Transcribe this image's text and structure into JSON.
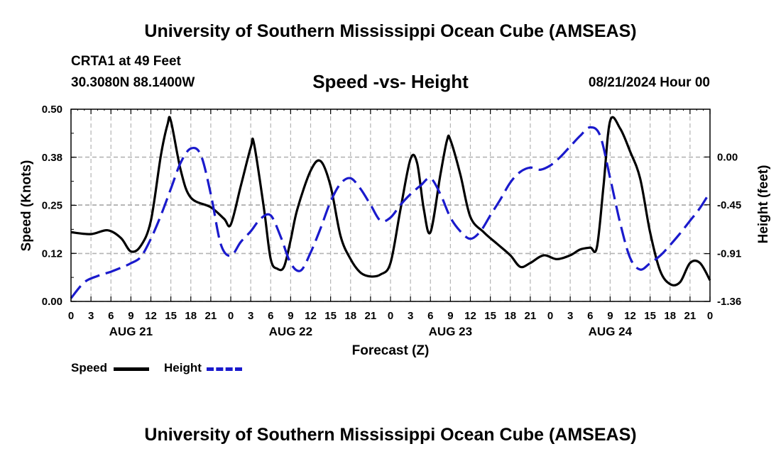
{
  "header": {
    "main_title": "University of Southern Mississippi Ocean Cube (AMSEAS)",
    "station_name": "CRTA1 at 49 Feet",
    "station_coords": "30.3080N  88.1400W",
    "chart_title": "Speed -vs- Height",
    "forecast_time": "08/21/2024 Hour 00"
  },
  "footer": {
    "title": "University of Southern Mississippi Ocean Cube (AMSEAS)"
  },
  "legend": {
    "speed_label": "Speed",
    "height_label": "Height"
  },
  "colors": {
    "speed": "#000000",
    "height": "#1a1acc",
    "grid": "#b4b4b4"
  },
  "chart_data": {
    "type": "line",
    "title": "Speed -vs- Height",
    "xlabel": "Forecast (Z)",
    "ylabel": "Speed (Knots)",
    "y2label": "Height (feet)",
    "x_hours_range": [
      0,
      96
    ],
    "x_tick_labels": [
      "0",
      "3",
      "6",
      "9",
      "12",
      "15",
      "18",
      "21",
      "0",
      "3",
      "6",
      "9",
      "12",
      "15",
      "18",
      "21",
      "0",
      "3",
      "6",
      "9",
      "12",
      "15",
      "18",
      "21",
      "0",
      "3",
      "6",
      "9",
      "12",
      "15",
      "18",
      "21",
      "0"
    ],
    "day_labels": [
      {
        "label": "AUG 21",
        "hour": 9
      },
      {
        "label": "AUG 22",
        "hour": 33
      },
      {
        "label": "AUG 23",
        "hour": 57
      },
      {
        "label": "AUG 24",
        "hour": 81
      }
    ],
    "y_left": {
      "range": [
        0,
        0.5
      ],
      "ticks": [
        0.0,
        0.125,
        0.25,
        0.375,
        0.5
      ],
      "tick_labels": [
        "0.00",
        "0.12",
        "0.25",
        "0.38",
        "0.50"
      ]
    },
    "y_right": {
      "range": [
        -1.36,
        0.45
      ],
      "ticks": [
        -1.36,
        -0.91,
        -0.45,
        0.0
      ],
      "tick_labels": [
        "-1.36",
        "-0.91",
        "-0.45",
        "0.00"
      ]
    },
    "series": [
      {
        "name": "Speed",
        "axis": "left",
        "style": "solid",
        "x": [
          0,
          3,
          5.5,
          7.5,
          9,
          10.5,
          12,
          13.5,
          14.5,
          15,
          16.5,
          18,
          21,
          23,
          24,
          25.5,
          27,
          27.5,
          29,
          30,
          31,
          32,
          33,
          34,
          36,
          37.5,
          39,
          40.5,
          42,
          43.5,
          45,
          46.5,
          48,
          49.5,
          51,
          52,
          53,
          54,
          55.5,
          56.5,
          57,
          58.5,
          60,
          62,
          64,
          66,
          67.5,
          69,
          71,
          73,
          75,
          76.5,
          78,
          79,
          80,
          81,
          82.5,
          84,
          85.5,
          87,
          88.5,
          90,
          91.5,
          93,
          94.5,
          96
        ],
        "values": [
          0.18,
          0.175,
          0.185,
          0.165,
          0.13,
          0.145,
          0.21,
          0.38,
          0.46,
          0.47,
          0.34,
          0.27,
          0.245,
          0.215,
          0.2,
          0.3,
          0.4,
          0.41,
          0.24,
          0.11,
          0.085,
          0.09,
          0.16,
          0.24,
          0.34,
          0.365,
          0.3,
          0.17,
          0.11,
          0.075,
          0.065,
          0.07,
          0.1,
          0.24,
          0.37,
          0.36,
          0.24,
          0.18,
          0.33,
          0.42,
          0.42,
          0.33,
          0.22,
          0.18,
          0.15,
          0.12,
          0.09,
          0.1,
          0.12,
          0.11,
          0.12,
          0.135,
          0.14,
          0.14,
          0.3,
          0.47,
          0.45,
          0.39,
          0.32,
          0.18,
          0.08,
          0.045,
          0.05,
          0.1,
          0.1,
          0.055
        ]
      },
      {
        "name": "Height",
        "axis": "right",
        "style": "dashed",
        "x": [
          0,
          2,
          4,
          6,
          8,
          9,
          10.5,
          12,
          13.5,
          15,
          16.5,
          18,
          19.5,
          21,
          22.5,
          24,
          25.5,
          27,
          28.5,
          30,
          31.5,
          33,
          34.5,
          36,
          37.5,
          39,
          40.5,
          42,
          43.5,
          45,
          46.5,
          48,
          49.5,
          51,
          52.5,
          54,
          55.5,
          57,
          58.5,
          60,
          61.5,
          63,
          64.5,
          66,
          67.5,
          69,
          70.5,
          72,
          73.5,
          75,
          76.5,
          78,
          79.5,
          81,
          82.5,
          84,
          85.5,
          87,
          88.5,
          90,
          91.5,
          93,
          94.5,
          96
        ],
        "values": [
          -1.33,
          -1.18,
          -1.12,
          -1.08,
          -1.03,
          -1.0,
          -0.94,
          -0.77,
          -0.55,
          -0.3,
          -0.05,
          0.08,
          0.02,
          -0.35,
          -0.82,
          -0.93,
          -0.8,
          -0.7,
          -0.58,
          -0.55,
          -0.75,
          -1.0,
          -1.07,
          -0.9,
          -0.67,
          -0.42,
          -0.25,
          -0.2,
          -0.3,
          -0.45,
          -0.6,
          -0.57,
          -0.45,
          -0.35,
          -0.27,
          -0.2,
          -0.35,
          -0.57,
          -0.7,
          -0.77,
          -0.7,
          -0.55,
          -0.4,
          -0.24,
          -0.14,
          -0.1,
          -0.12,
          -0.08,
          0.0,
          0.1,
          0.2,
          0.28,
          0.2,
          -0.2,
          -0.62,
          -0.95,
          -1.06,
          -1.0,
          -0.93,
          -0.83,
          -0.72,
          -0.6,
          -0.48,
          -0.33
        ]
      }
    ]
  }
}
